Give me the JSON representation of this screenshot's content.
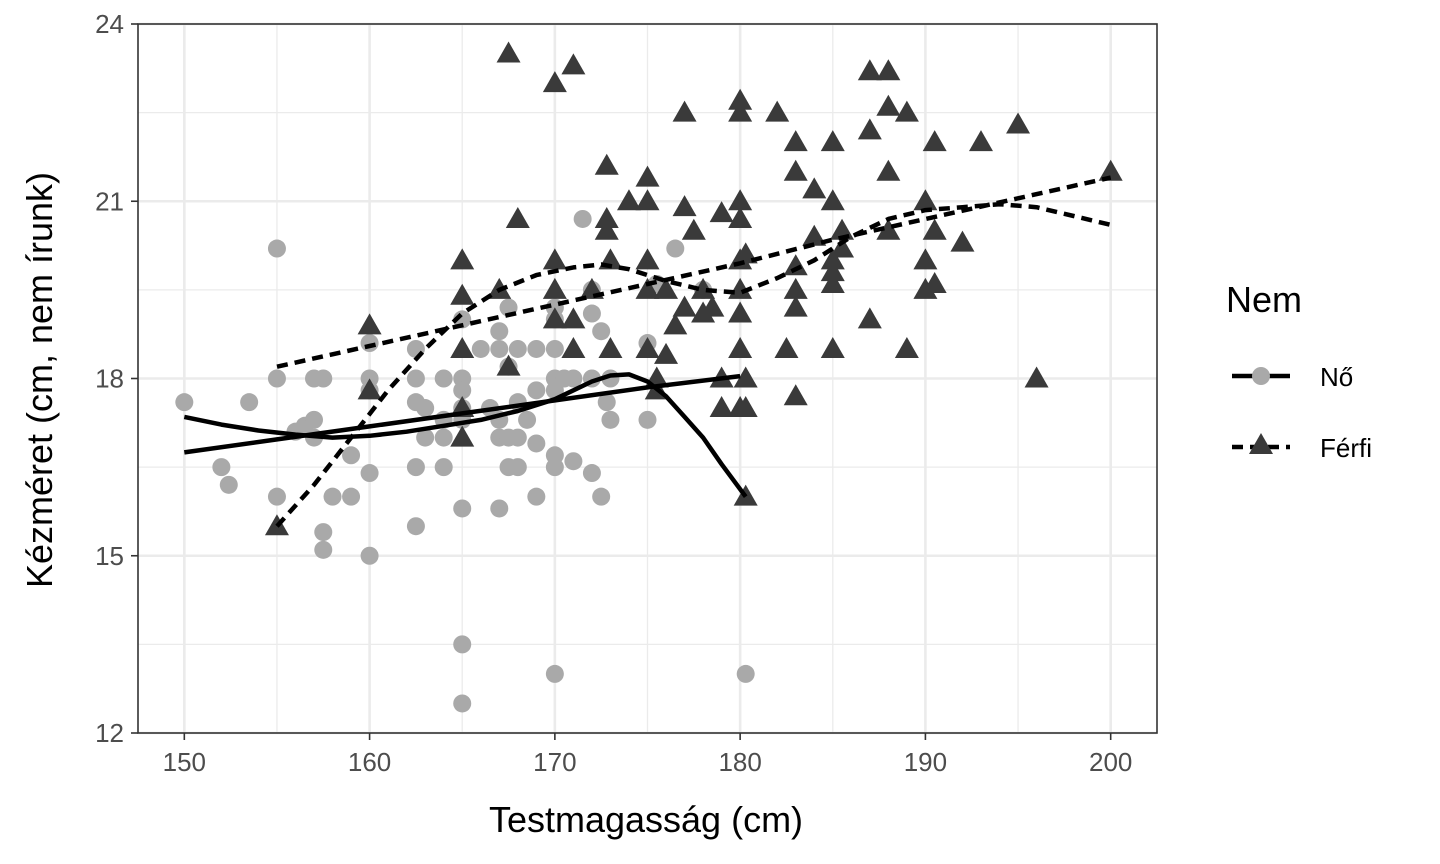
{
  "chart_data": {
    "type": "scatter",
    "title": "",
    "xlabel": "Testmagasság (cm)",
    "ylabel": "Kézméret (cm, nem írunk)",
    "xlim": [
      147.5,
      202.5
    ],
    "ylim": [
      12,
      24
    ],
    "x_ticks": [
      150,
      160,
      170,
      180,
      190,
      200
    ],
    "x_tick_labels": [
      "150",
      "160",
      "170",
      "180",
      "190",
      "200"
    ],
    "y_ticks": [
      12,
      15,
      18,
      21,
      24
    ],
    "y_tick_labels": [
      "12",
      "15",
      "18",
      "21",
      "24"
    ],
    "grid": true,
    "legend": {
      "title": "Nem",
      "position": "right",
      "entries": [
        {
          "label": "Nő",
          "marker": "circle",
          "line": "solid"
        },
        {
          "label": "Férfi",
          "marker": "triangle",
          "line": "dashed"
        }
      ]
    },
    "colors": {
      "female_points": "#a9a9a9",
      "male_points": "#3a3a3a",
      "lines": "#000000",
      "grid": "#ebebeb",
      "panel_border": "#333333"
    },
    "series": [
      {
        "name": "Nő",
        "marker": "circle",
        "points": [
          [
            150,
            17.6
          ],
          [
            152,
            16.5
          ],
          [
            152.4,
            16.2
          ],
          [
            153.5,
            17.6
          ],
          [
            155,
            20.2
          ],
          [
            155,
            18
          ],
          [
            155,
            16
          ],
          [
            156,
            17.1
          ],
          [
            156.5,
            17.2
          ],
          [
            157,
            18
          ],
          [
            157,
            17.3
          ],
          [
            157,
            17
          ],
          [
            157.5,
            18
          ],
          [
            157.5,
            15.4
          ],
          [
            157.5,
            15.1
          ],
          [
            158,
            16
          ],
          [
            159,
            16.7
          ],
          [
            159,
            16
          ],
          [
            160,
            18.6
          ],
          [
            160,
            18
          ],
          [
            160,
            17.8
          ],
          [
            160,
            16.4
          ],
          [
            160,
            15
          ],
          [
            162.5,
            18.5
          ],
          [
            162.5,
            18
          ],
          [
            162.5,
            17.6
          ],
          [
            162.5,
            16.5
          ],
          [
            162.5,
            15.5
          ],
          [
            163,
            17.5
          ],
          [
            163,
            17
          ],
          [
            164,
            18
          ],
          [
            164,
            17.3
          ],
          [
            164,
            17
          ],
          [
            164,
            16.5
          ],
          [
            165,
            19
          ],
          [
            165,
            18
          ],
          [
            165,
            17.8
          ],
          [
            165,
            17.5
          ],
          [
            165,
            17.3
          ],
          [
            165,
            15.8
          ],
          [
            165,
            13.5
          ],
          [
            165,
            12.5
          ],
          [
            166,
            18.5
          ],
          [
            166.5,
            17.5
          ],
          [
            167,
            18.8
          ],
          [
            167,
            18.5
          ],
          [
            167,
            17.3
          ],
          [
            167,
            17
          ],
          [
            167,
            15.8
          ],
          [
            167.5,
            19.2
          ],
          [
            167.5,
            18.2
          ],
          [
            167.5,
            17
          ],
          [
            167.5,
            16.5
          ],
          [
            168,
            18.5
          ],
          [
            168,
            17.6
          ],
          [
            168,
            17
          ],
          [
            168,
            16.5
          ],
          [
            168.5,
            17.3
          ],
          [
            169,
            18.5
          ],
          [
            169,
            17.8
          ],
          [
            169,
            16.9
          ],
          [
            169,
            16
          ],
          [
            170,
            19.2
          ],
          [
            170,
            19
          ],
          [
            170,
            18.5
          ],
          [
            170,
            18
          ],
          [
            170,
            17.8
          ],
          [
            170,
            16.5
          ],
          [
            170,
            16.7
          ],
          [
            170,
            13
          ],
          [
            170.5,
            18
          ],
          [
            171,
            18
          ],
          [
            171,
            16.6
          ],
          [
            171.5,
            20.7
          ],
          [
            172,
            19.5
          ],
          [
            172,
            19.1
          ],
          [
            172,
            18
          ],
          [
            172,
            16.4
          ],
          [
            172.5,
            18.8
          ],
          [
            172.8,
            17.6
          ],
          [
            172.5,
            16
          ],
          [
            173,
            18
          ],
          [
            173,
            17.3
          ],
          [
            175,
            18.6
          ],
          [
            175,
            17.3
          ],
          [
            175.5,
            19.6
          ],
          [
            176.5,
            20.2
          ],
          [
            178,
            19.5
          ],
          [
            180.3,
            13
          ]
        ]
      },
      {
        "name": "Férfi",
        "marker": "triangle",
        "points": [
          [
            155,
            15.5
          ],
          [
            160,
            18.9
          ],
          [
            160,
            17.8
          ],
          [
            165,
            20
          ],
          [
            165,
            19.4
          ],
          [
            165,
            18.5
          ],
          [
            165,
            17.5
          ],
          [
            165,
            17
          ],
          [
            167,
            19.5
          ],
          [
            167.5,
            23.5
          ],
          [
            167.5,
            18.2
          ],
          [
            168,
            20.7
          ],
          [
            170,
            23
          ],
          [
            170,
            20
          ],
          [
            170,
            19.5
          ],
          [
            170,
            19
          ],
          [
            171,
            19
          ],
          [
            171,
            18.5
          ],
          [
            171,
            23.3
          ],
          [
            172,
            19.5
          ],
          [
            172.8,
            21.6
          ],
          [
            172.8,
            20.7
          ],
          [
            172.8,
            20.5
          ],
          [
            173,
            20
          ],
          [
            173,
            18.5
          ],
          [
            174,
            21
          ],
          [
            175,
            21.4
          ],
          [
            175,
            21
          ],
          [
            175,
            20
          ],
          [
            175,
            19.5
          ],
          [
            175,
            18.5
          ],
          [
            175.5,
            18
          ],
          [
            175.5,
            17.8
          ],
          [
            176,
            18.4
          ],
          [
            176,
            19.5
          ],
          [
            176.5,
            18.9
          ],
          [
            177,
            22.5
          ],
          [
            177,
            20.9
          ],
          [
            177,
            19.2
          ],
          [
            177.5,
            20.5
          ],
          [
            178,
            19.5
          ],
          [
            178,
            19.1
          ],
          [
            178.5,
            19.2
          ],
          [
            179,
            17.5
          ],
          [
            179,
            18
          ],
          [
            179,
            20.8
          ],
          [
            180,
            22.7
          ],
          [
            180,
            22.5
          ],
          [
            180,
            21
          ],
          [
            180,
            20.7
          ],
          [
            180,
            20
          ],
          [
            180,
            19.5
          ],
          [
            180,
            19.1
          ],
          [
            180,
            18.5
          ],
          [
            180,
            17.5
          ],
          [
            180.3,
            20.1
          ],
          [
            180.3,
            18
          ],
          [
            180.3,
            17.5
          ],
          [
            180.3,
            16
          ],
          [
            182,
            22.5
          ],
          [
            182.5,
            18.5
          ],
          [
            183,
            22
          ],
          [
            183,
            21.5
          ],
          [
            183,
            19.9
          ],
          [
            183,
            19.5
          ],
          [
            183,
            19.2
          ],
          [
            183,
            17.7
          ],
          [
            184,
            21.2
          ],
          [
            184,
            20.4
          ],
          [
            185,
            22
          ],
          [
            185,
            21
          ],
          [
            185,
            20
          ],
          [
            185,
            19.8
          ],
          [
            185,
            19.6
          ],
          [
            185,
            18.5
          ],
          [
            185.5,
            20.5
          ],
          [
            185.5,
            20.2
          ],
          [
            187,
            23.2
          ],
          [
            187,
            22.2
          ],
          [
            187,
            19
          ],
          [
            188,
            23.2
          ],
          [
            188,
            22.6
          ],
          [
            188,
            21.5
          ],
          [
            188,
            20.5
          ],
          [
            189,
            22.5
          ],
          [
            189,
            18.5
          ],
          [
            190,
            21
          ],
          [
            190,
            20
          ],
          [
            190,
            19.5
          ],
          [
            190.5,
            20.5
          ],
          [
            190.5,
            19.6
          ],
          [
            190.5,
            22
          ],
          [
            192,
            20.3
          ],
          [
            193,
            22
          ],
          [
            195,
            22.3
          ],
          [
            196,
            18
          ],
          [
            200,
            21.5
          ]
        ]
      }
    ],
    "fit_lines": [
      {
        "series": "Nő",
        "kind": "linear",
        "style": "solid",
        "points": [
          [
            150,
            16.75
          ],
          [
            155,
            16.97
          ],
          [
            160,
            17.19
          ],
          [
            165,
            17.41
          ],
          [
            170,
            17.63
          ],
          [
            175,
            17.85
          ],
          [
            180,
            18.04
          ]
        ]
      },
      {
        "series": "Nő",
        "kind": "loess",
        "style": "solid",
        "points": [
          [
            150,
            17.35
          ],
          [
            152,
            17.22
          ],
          [
            154,
            17.12
          ],
          [
            156,
            17.05
          ],
          [
            158,
            17.0
          ],
          [
            160,
            17.03
          ],
          [
            162,
            17.1
          ],
          [
            164,
            17.2
          ],
          [
            166,
            17.3
          ],
          [
            168,
            17.45
          ],
          [
            170,
            17.65
          ],
          [
            172,
            17.95
          ],
          [
            173,
            18.05
          ],
          [
            174,
            18.07
          ],
          [
            175,
            17.95
          ],
          [
            176,
            17.7
          ],
          [
            177,
            17.35
          ],
          [
            178,
            17.0
          ],
          [
            179,
            16.55
          ],
          [
            180.3,
            16.0
          ]
        ]
      },
      {
        "series": "Férfi",
        "kind": "linear",
        "style": "dashed",
        "points": [
          [
            155,
            18.2
          ],
          [
            160,
            18.55
          ],
          [
            165,
            18.9
          ],
          [
            170,
            19.25
          ],
          [
            175,
            19.6
          ],
          [
            180,
            19.95
          ],
          [
            185,
            20.35
          ],
          [
            190,
            20.7
          ],
          [
            195,
            21.05
          ],
          [
            200,
            21.4
          ]
        ]
      },
      {
        "series": "Férfi",
        "kind": "loess",
        "style": "dashed",
        "points": [
          [
            155,
            15.5
          ],
          [
            157,
            16.2
          ],
          [
            159,
            17.0
          ],
          [
            161,
            17.8
          ],
          [
            163,
            18.5
          ],
          [
            165,
            19.1
          ],
          [
            167,
            19.5
          ],
          [
            169,
            19.75
          ],
          [
            171,
            19.88
          ],
          [
            172.5,
            19.93
          ],
          [
            174,
            19.85
          ],
          [
            176,
            19.65
          ],
          [
            178,
            19.5
          ],
          [
            180,
            19.45
          ],
          [
            182,
            19.7
          ],
          [
            184,
            20.0
          ],
          [
            186,
            20.4
          ],
          [
            188,
            20.7
          ],
          [
            190,
            20.85
          ],
          [
            192,
            20.9
          ],
          [
            194,
            20.95
          ],
          [
            196,
            20.9
          ],
          [
            198,
            20.75
          ],
          [
            200,
            20.6
          ]
        ]
      }
    ]
  }
}
